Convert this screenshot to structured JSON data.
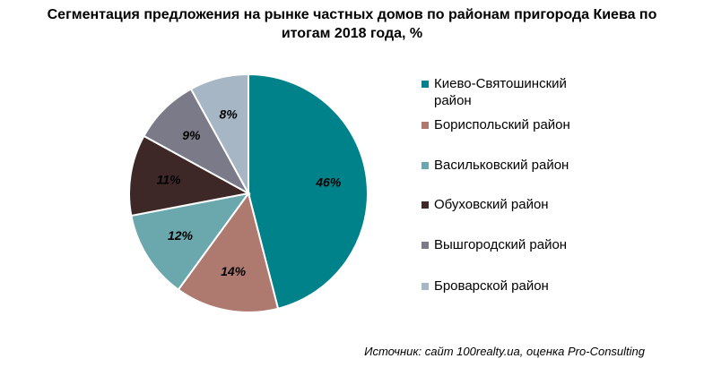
{
  "title_line1": "Сегментация предложения на рынке частных домов по районам пригорода Киева по",
  "title_line2": "итогам 2018 года, %",
  "source": "Источник: сайт 100realty.ua, оценка Pro-Consulting",
  "chart_data": {
    "type": "pie",
    "title": "Сегментация предложения на рынке частных домов по районам пригорода Киева по итогам 2018 года, %",
    "legend_position": "right",
    "slices": [
      {
        "label": "Киево-Святошинский район",
        "value": 46,
        "value_label": "46%",
        "color": "#00828a"
      },
      {
        "label": "Бориспольский район",
        "value": 14,
        "value_label": "14%",
        "color": "#ae7a70"
      },
      {
        "label": "Васильковский район",
        "value": 12,
        "value_label": "12%",
        "color": "#6aa8ad"
      },
      {
        "label": "Обуховский район",
        "value": 11,
        "value_label": "11%",
        "color": "#3d2727"
      },
      {
        "label": "Вышгородский район",
        "value": 9,
        "value_label": "9%",
        "color": "#7b7a88"
      },
      {
        "label": "Броварской район",
        "value": 8,
        "value_label": "8%",
        "color": "#a6b6c4"
      }
    ]
  }
}
